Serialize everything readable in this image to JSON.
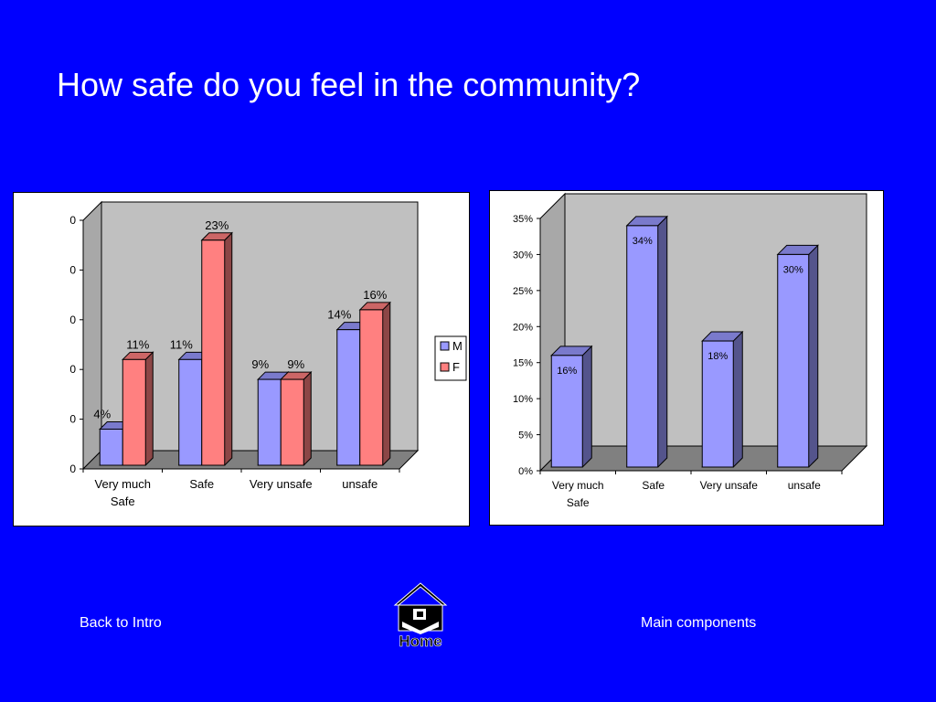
{
  "slide": {
    "title": "How safe do you feel in the community?"
  },
  "nav": {
    "back_label": "Back to Intro",
    "home_label": "Home",
    "main_label": "Main components",
    "home_icon": "home-icon"
  },
  "colors": {
    "background": "#0000ff",
    "plot_wall": "#c0c0c0",
    "floor": "#808080",
    "series_m": "#9999ff",
    "series_f": "#ff8080"
  },
  "chart_data": [
    {
      "type": "bar",
      "style": "3d-clustered",
      "categories": [
        "Very much Safe",
        "Safe",
        "Very unsafe",
        "unsafe"
      ],
      "category_lines": [
        [
          "Very much",
          "Safe"
        ],
        [
          "Safe"
        ],
        [
          "Very unsafe"
        ],
        [
          "unsafe"
        ]
      ],
      "y_tick_labels": [
        "0",
        "0",
        "0",
        "0",
        "0",
        "0"
      ],
      "ylim": [
        0,
        0.25
      ],
      "grid": false,
      "legend": "right",
      "series": [
        {
          "name": "M",
          "values": [
            0.04,
            0.11,
            0.09,
            0.14
          ],
          "labels": [
            "4%",
            "11%",
            "9%",
            "14%"
          ]
        },
        {
          "name": "F",
          "values": [
            0.11,
            0.23,
            0.09,
            0.16
          ],
          "labels": [
            "11%",
            "23%",
            "9%",
            "16%"
          ]
        }
      ]
    },
    {
      "type": "bar",
      "style": "3d",
      "categories": [
        "Very much Safe",
        "Safe",
        "Very unsafe",
        "unsafe"
      ],
      "category_lines": [
        [
          "Very much",
          "Safe"
        ],
        [
          "Safe"
        ],
        [
          "Very unsafe"
        ],
        [
          "unsafe"
        ]
      ],
      "y_tick_labels": [
        "0%",
        "5%",
        "10%",
        "15%",
        "20%",
        "25%",
        "30%",
        "35%"
      ],
      "ylim": [
        0,
        0.35
      ],
      "grid": false,
      "legend": "none",
      "series": [
        {
          "values": [
            0.16,
            0.34,
            0.18,
            0.3
          ],
          "labels": [
            "16%",
            "34%",
            "18%",
            "30%"
          ]
        }
      ]
    }
  ]
}
